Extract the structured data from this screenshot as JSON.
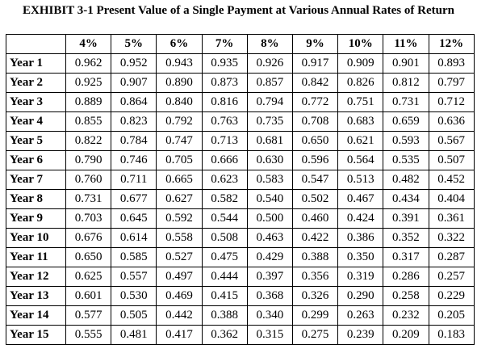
{
  "exhibit": {
    "title": "EXHIBIT 3-1 Present Value of a Single Payment at Various Annual Rates of Return",
    "corner_label": "",
    "rates": [
      "4%",
      "5%",
      "6%",
      "7%",
      "8%",
      "9%",
      "10%",
      "11%",
      "12%"
    ],
    "rows": [
      {
        "label": "Year 1",
        "values": [
          "0.962",
          "0.952",
          "0.943",
          "0.935",
          "0.926",
          "0.917",
          "0.909",
          "0.901",
          "0.893"
        ]
      },
      {
        "label": "Year 2",
        "values": [
          "0.925",
          "0.907",
          "0.890",
          "0.873",
          "0.857",
          "0.842",
          "0.826",
          "0.812",
          "0.797"
        ]
      },
      {
        "label": "Year 3",
        "values": [
          "0.889",
          "0.864",
          "0.840",
          "0.816",
          "0.794",
          "0.772",
          "0.751",
          "0.731",
          "0.712"
        ]
      },
      {
        "label": "Year 4",
        "values": [
          "0.855",
          "0.823",
          "0.792",
          "0.763",
          "0.735",
          "0.708",
          "0.683",
          "0.659",
          "0.636"
        ]
      },
      {
        "label": "Year 5",
        "values": [
          "0.822",
          "0.784",
          "0.747",
          "0.713",
          "0.681",
          "0.650",
          "0.621",
          "0.593",
          "0.567"
        ]
      },
      {
        "label": "Year 6",
        "values": [
          "0.790",
          "0.746",
          "0.705",
          "0.666",
          "0.630",
          "0.596",
          "0.564",
          "0.535",
          "0.507"
        ]
      },
      {
        "label": "Year 7",
        "values": [
          "0.760",
          "0.711",
          "0.665",
          "0.623",
          "0.583",
          "0.547",
          "0.513",
          "0.482",
          "0.452"
        ]
      },
      {
        "label": "Year 8",
        "values": [
          "0.731",
          "0.677",
          "0.627",
          "0.582",
          "0.540",
          "0.502",
          "0.467",
          "0.434",
          "0.404"
        ]
      },
      {
        "label": "Year 9",
        "values": [
          "0.703",
          "0.645",
          "0.592",
          "0.544",
          "0.500",
          "0.460",
          "0.424",
          "0.391",
          "0.361"
        ]
      },
      {
        "label": "Year 10",
        "values": [
          "0.676",
          "0.614",
          "0.558",
          "0.508",
          "0.463",
          "0.422",
          "0.386",
          "0.352",
          "0.322"
        ]
      },
      {
        "label": "Year 11",
        "values": [
          "0.650",
          "0.585",
          "0.527",
          "0.475",
          "0.429",
          "0.388",
          "0.350",
          "0.317",
          "0.287"
        ]
      },
      {
        "label": "Year 12",
        "values": [
          "0.625",
          "0.557",
          "0.497",
          "0.444",
          "0.397",
          "0.356",
          "0.319",
          "0.286",
          "0.257"
        ]
      },
      {
        "label": "Year 13",
        "values": [
          "0.601",
          "0.530",
          "0.469",
          "0.415",
          "0.368",
          "0.326",
          "0.290",
          "0.258",
          "0.229"
        ]
      },
      {
        "label": "Year 14",
        "values": [
          "0.577",
          "0.505",
          "0.442",
          "0.388",
          "0.340",
          "0.299",
          "0.263",
          "0.232",
          "0.205"
        ]
      },
      {
        "label": "Year 15",
        "values": [
          "0.555",
          "0.481",
          "0.417",
          "0.362",
          "0.315",
          "0.275",
          "0.239",
          "0.209",
          "0.183"
        ]
      }
    ]
  }
}
